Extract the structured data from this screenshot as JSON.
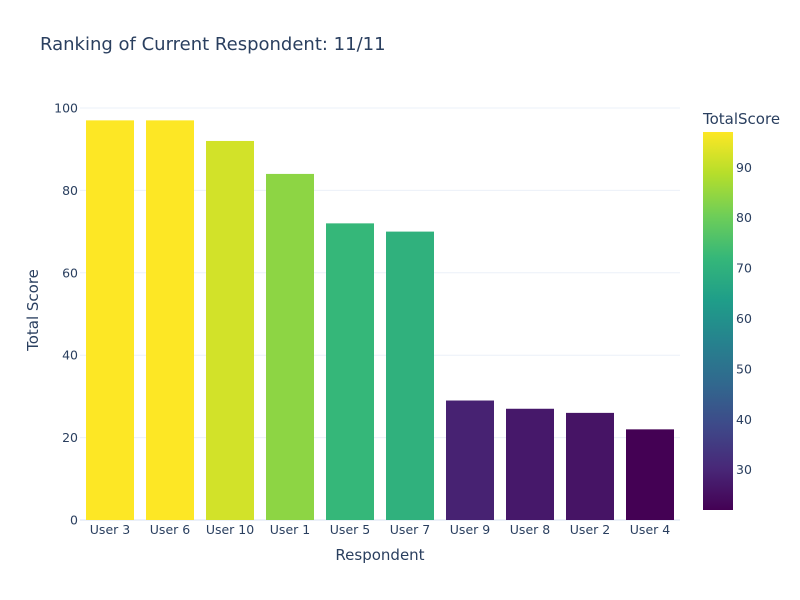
{
  "chart_data": {
    "type": "bar",
    "title": "Ranking of Current Respondent: 11/11",
    "xlabel": "Respondent",
    "ylabel": "Total Score",
    "ylim": [
      0,
      100
    ],
    "yticks": [
      0,
      20,
      40,
      60,
      80,
      100
    ],
    "grid": true,
    "categories": [
      "User 3",
      "User 6",
      "User 10",
      "User 1",
      "User 5",
      "User 7",
      "User 9",
      "User 8",
      "User 2",
      "User 4"
    ],
    "values": [
      97,
      97,
      92,
      84,
      72,
      70,
      29,
      27,
      26,
      22
    ],
    "colorbar": {
      "title": "TotalScore",
      "colorscale": "viridis",
      "range": [
        22,
        97
      ],
      "ticks": [
        30,
        40,
        50,
        60,
        70,
        80,
        90
      ],
      "placement": "right"
    }
  }
}
